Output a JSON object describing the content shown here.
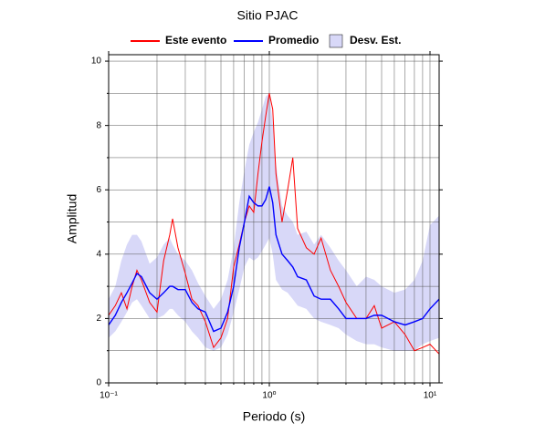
{
  "chart_data": {
    "type": "line",
    "title": "Sitio PJAC",
    "xlabel": "Periodo (s)",
    "ylabel": "Amplitud",
    "xscale": "log",
    "grid": true,
    "xlim": [
      0.1,
      11.4
    ],
    "ylim": [
      0,
      10.2
    ],
    "xticks": [
      {
        "value": 0.1,
        "label": "10⁻¹"
      },
      {
        "value": 1,
        "label": "10⁰"
      },
      {
        "value": 10,
        "label": "10¹"
      }
    ],
    "xminorticks": [
      0.2,
      0.3,
      0.4,
      0.5,
      0.6,
      0.7,
      0.8,
      0.9,
      2,
      3,
      4,
      5,
      6,
      7,
      8,
      9
    ],
    "yticks": [
      0,
      2,
      4,
      6,
      8,
      10
    ],
    "yminorticks": [
      1,
      3,
      5,
      7,
      9
    ],
    "x": [
      0.1,
      0.11,
      0.12,
      0.13,
      0.14,
      0.15,
      0.16,
      0.18,
      0.2,
      0.22,
      0.24,
      0.25,
      0.27,
      0.3,
      0.33,
      0.36,
      0.4,
      0.45,
      0.5,
      0.55,
      0.6,
      0.65,
      0.7,
      0.75,
      0.8,
      0.85,
      0.9,
      0.95,
      1.0,
      1.05,
      1.1,
      1.2,
      1.3,
      1.4,
      1.5,
      1.7,
      1.9,
      2.1,
      2.4,
      2.7,
      3.0,
      3.5,
      4,
      4.5,
      5,
      6,
      7,
      8,
      9,
      10,
      11.4
    ],
    "series": [
      {
        "name": "Desv. Est.",
        "kind": "band",
        "color": "#d8d8f8",
        "lower": [
          1.4,
          1.6,
          1.9,
          2.2,
          2.5,
          2.6,
          2.4,
          2.0,
          2.0,
          2.1,
          2.3,
          2.3,
          2.1,
          1.9,
          1.6,
          1.4,
          1.1,
          1.0,
          1.1,
          1.5,
          2.2,
          2.9,
          3.6,
          3.9,
          3.8,
          3.9,
          4.1,
          4.3,
          4.5,
          4.0,
          3.2,
          2.9,
          2.8,
          2.6,
          2.4,
          2.3,
          2.0,
          1.9,
          1.8,
          1.7,
          1.5,
          1.3,
          1.2,
          1.2,
          1.1,
          1.0,
          1.0,
          1.0,
          1.2,
          1.3,
          1.4
        ],
        "upper": [
          2.6,
          3.0,
          3.8,
          4.3,
          4.6,
          4.6,
          4.4,
          3.7,
          3.9,
          4.3,
          4.5,
          4.3,
          4.0,
          3.8,
          3.5,
          3.1,
          2.7,
          2.3,
          2.6,
          3.2,
          4.2,
          5.6,
          6.6,
          7.4,
          7.8,
          8.1,
          8.5,
          8.9,
          9.0,
          8.1,
          6.8,
          5.5,
          5.2,
          5.0,
          4.6,
          4.7,
          4.3,
          4.6,
          4.2,
          3.8,
          3.5,
          3.0,
          3.3,
          3.2,
          3.0,
          2.8,
          2.9,
          3.2,
          3.8,
          4.9,
          5.2
        ]
      },
      {
        "name": "Este evento",
        "kind": "line",
        "color": "#ff0000",
        "values": [
          2.1,
          2.4,
          2.8,
          2.3,
          3.0,
          3.5,
          3.2,
          2.5,
          2.2,
          3.8,
          4.6,
          5.1,
          4.2,
          3.4,
          2.6,
          2.4,
          1.9,
          1.1,
          1.4,
          2.0,
          3.6,
          4.3,
          5.0,
          5.5,
          5.3,
          6.5,
          7.5,
          8.3,
          9.0,
          8.5,
          6.5,
          5.0,
          6.0,
          7.0,
          4.8,
          4.2,
          4.0,
          4.5,
          3.5,
          3.0,
          2.5,
          2.0,
          2.0,
          2.4,
          1.7,
          1.9,
          1.5,
          1.0,
          1.1,
          1.2,
          0.9
        ]
      },
      {
        "name": "Promedio",
        "kind": "line",
        "color": "#0000ff",
        "values": [
          1.8,
          2.1,
          2.5,
          2.8,
          3.1,
          3.4,
          3.3,
          2.8,
          2.6,
          2.8,
          3.0,
          3.0,
          2.9,
          2.9,
          2.5,
          2.3,
          2.2,
          1.6,
          1.7,
          2.2,
          3.0,
          4.2,
          5.0,
          5.8,
          5.6,
          5.5,
          5.5,
          5.7,
          6.1,
          5.6,
          4.6,
          4.0,
          3.8,
          3.6,
          3.3,
          3.2,
          2.7,
          2.6,
          2.6,
          2.3,
          2.0,
          2.0,
          2.0,
          2.1,
          2.1,
          1.9,
          1.8,
          1.9,
          2.0,
          2.3,
          2.6
        ]
      }
    ]
  }
}
